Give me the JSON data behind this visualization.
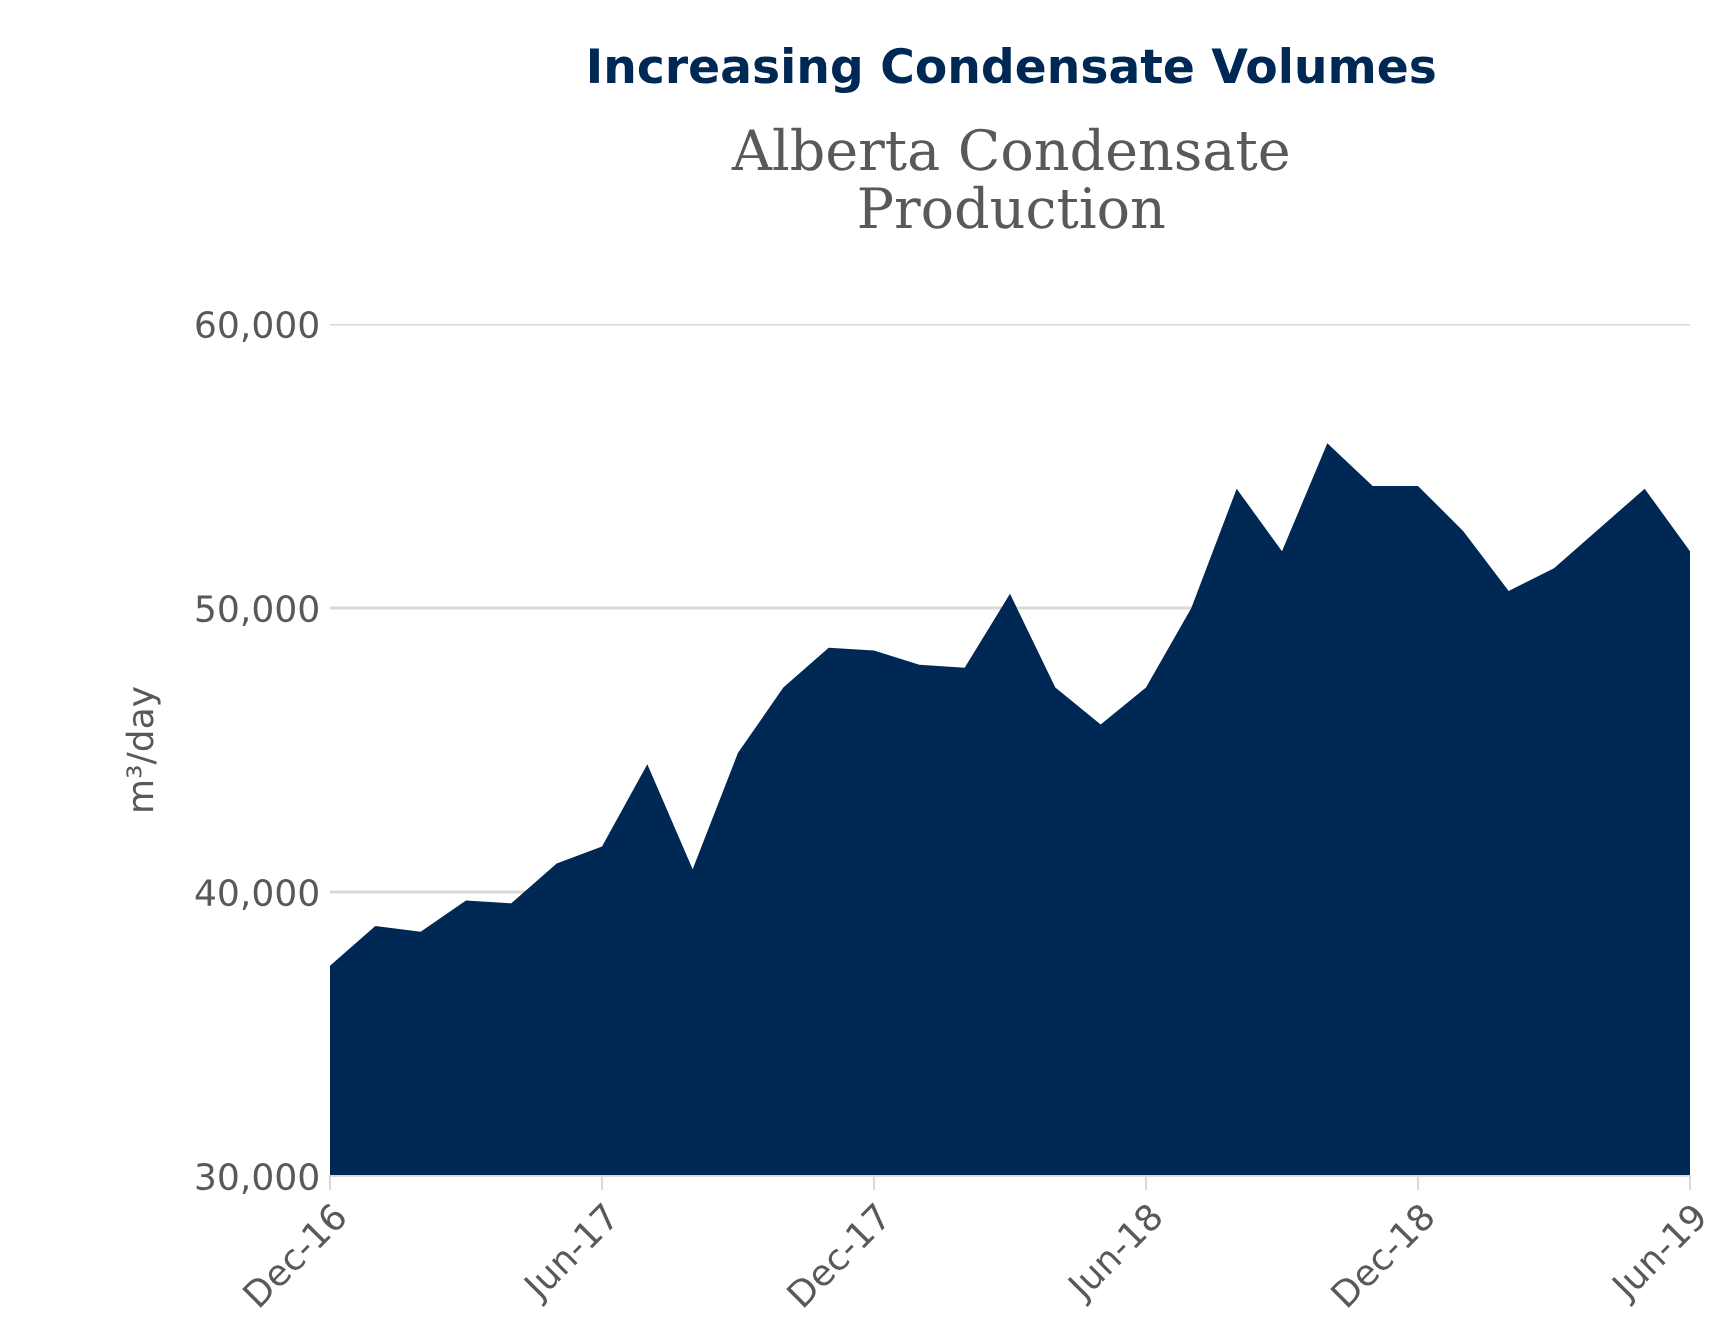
{
  "chart_data": {
    "type": "area",
    "title": "Increasing Condensate Volumes",
    "subtitle": "Alberta Condensate\nProduction",
    "ylabel": "m³/day",
    "x": [
      "2016-12",
      "2017-01",
      "2017-02",
      "2017-03",
      "2017-04",
      "2017-05",
      "2017-06",
      "2017-07",
      "2017-08",
      "2017-09",
      "2017-10",
      "2017-11",
      "2017-12",
      "2018-01",
      "2018-02",
      "2018-03",
      "2018-04",
      "2018-05",
      "2018-06",
      "2018-07",
      "2018-08",
      "2018-09",
      "2018-10",
      "2018-11",
      "2018-12",
      "2019-01",
      "2019-02",
      "2019-03",
      "2019-04",
      "2019-05",
      "2019-06"
    ],
    "series": [
      {
        "color": "#002855",
        "values": [
          37400,
          38800,
          38600,
          39700,
          39600,
          41000,
          41600,
          44500,
          40800,
          44900,
          47200,
          48600,
          48500,
          48000,
          47900,
          50500,
          47200,
          45900,
          47200,
          50000,
          54200,
          52000,
          55800,
          54300,
          54300,
          52700,
          50600,
          51400,
          52800,
          54200,
          52000
        ]
      }
    ],
    "xlim": [
      "2016-12",
      "2019-06"
    ],
    "xticks": [
      {
        "value": "2016-12",
        "label": "Dec-16"
      },
      {
        "value": "2017-06",
        "label": "Jun-17"
      },
      {
        "value": "2017-12",
        "label": "Dec-17"
      },
      {
        "value": "2018-06",
        "label": "Jun-18"
      },
      {
        "value": "2018-12",
        "label": "Dec-18"
      },
      {
        "value": "2019-06",
        "label": "Jun-19"
      }
    ],
    "ylim": [
      30000,
      60000
    ],
    "yticks": [
      {
        "value": 30000,
        "label": "30,000"
      },
      {
        "value": 40000,
        "label": "40,000"
      },
      {
        "value": 50000,
        "label": "50,000"
      },
      {
        "value": 60000,
        "label": "60,000"
      }
    ],
    "grid": "y",
    "legend": false
  }
}
